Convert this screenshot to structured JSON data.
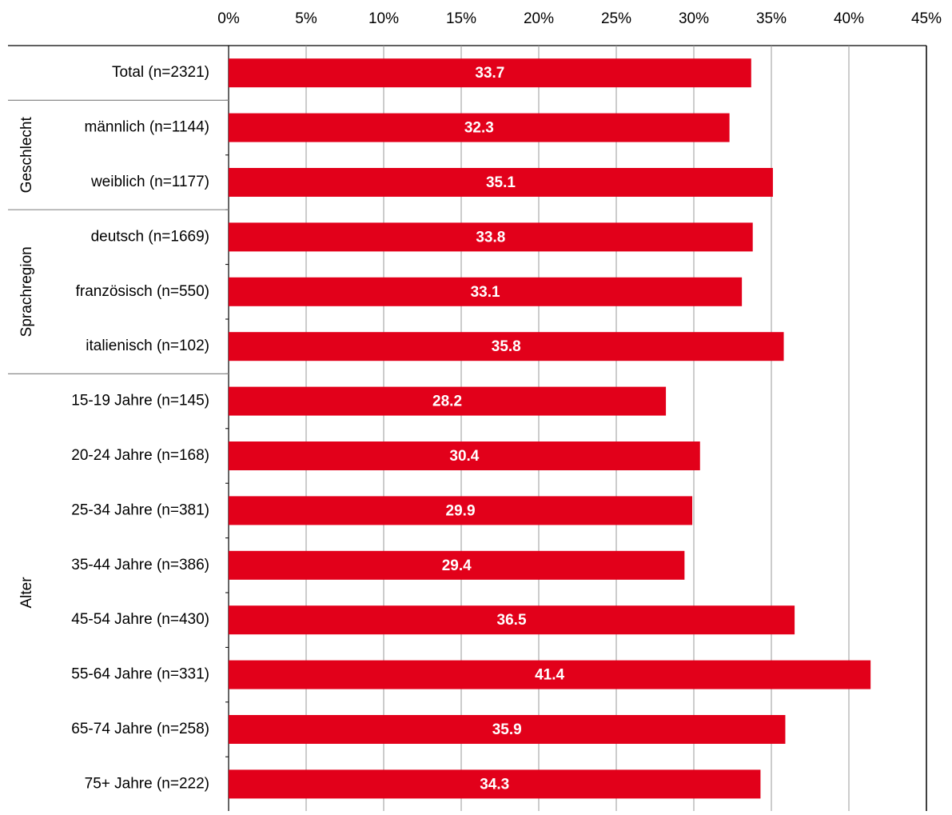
{
  "chart_data": {
    "type": "bar",
    "orientation": "horizontal",
    "title": "",
    "xlabel": "",
    "ylabel": "",
    "xlim": [
      0,
      45
    ],
    "x_ticks": [
      0,
      5,
      10,
      15,
      20,
      25,
      30,
      35,
      40,
      45
    ],
    "x_tick_labels": [
      "0%",
      "5%",
      "10%",
      "15%",
      "20%",
      "25%",
      "30%",
      "35%",
      "40%",
      "45%"
    ],
    "axis_position": "top",
    "grid": true,
    "legend": "none",
    "bar_color": "#e2001a",
    "label_color": "#ffffff",
    "categories": [
      "Total (n=2321)",
      "männlich (n=1144)",
      "weiblich (n=1177)",
      "deutsch (n=1669)",
      "französisch (n=550)",
      "italienisch (n=102)",
      "15-19 Jahre (n=145)",
      "20-24 Jahre (n=168)",
      "25-34 Jahre (n=381)",
      "35-44 Jahre (n=386)",
      "45-54 Jahre (n=430)",
      "55-64 Jahre (n=331)",
      "65-74 Jahre (n=258)",
      "75+ Jahre (n=222)"
    ],
    "values": [
      33.7,
      32.3,
      35.1,
      33.8,
      33.1,
      35.8,
      28.2,
      30.4,
      29.9,
      29.4,
      36.5,
      41.4,
      35.9,
      34.3
    ],
    "value_labels": [
      "33.7",
      "32.3",
      "35.1",
      "33.8",
      "33.1",
      "35.8",
      "28.2",
      "30.4",
      "29.9",
      "29.4",
      "36.5",
      "41.4",
      "35.9",
      "34.3"
    ],
    "groups": [
      {
        "name": "",
        "from": 0,
        "to": 0
      },
      {
        "name": "Geschlecht",
        "from": 1,
        "to": 2
      },
      {
        "name": "Sprachregion",
        "from": 3,
        "to": 5
      },
      {
        "name": "Alter",
        "from": 6,
        "to": 13
      }
    ]
  }
}
